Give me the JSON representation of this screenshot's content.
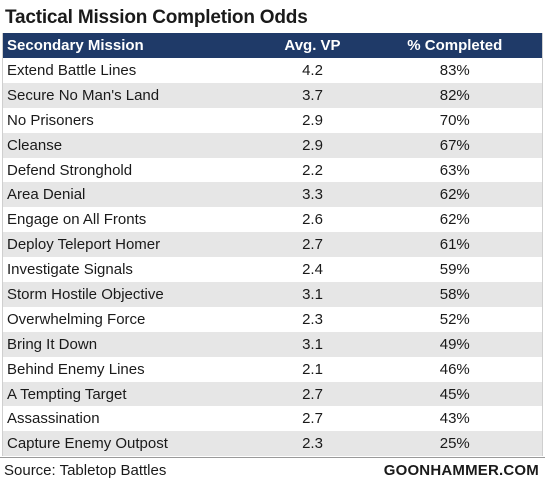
{
  "title": "Tactical Mission Completion Odds",
  "table": {
    "headers": {
      "mission": "Secondary Mission",
      "avg_vp": "Avg. VP",
      "completed": "% Completed"
    },
    "rows": [
      {
        "mission": "Extend Battle Lines",
        "avg_vp": "4.2",
        "completed": "83%"
      },
      {
        "mission": "Secure No Man's Land",
        "avg_vp": "3.7",
        "completed": "82%"
      },
      {
        "mission": "No Prisoners",
        "avg_vp": "2.9",
        "completed": "70%"
      },
      {
        "mission": "Cleanse",
        "avg_vp": "2.9",
        "completed": "67%"
      },
      {
        "mission": "Defend Stronghold",
        "avg_vp": "2.2",
        "completed": "63%"
      },
      {
        "mission": "Area Denial",
        "avg_vp": "3.3",
        "completed": "62%"
      },
      {
        "mission": "Engage on All Fronts",
        "avg_vp": "2.6",
        "completed": "62%"
      },
      {
        "mission": "Deploy Teleport Homer",
        "avg_vp": "2.7",
        "completed": "61%"
      },
      {
        "mission": "Investigate Signals",
        "avg_vp": "2.4",
        "completed": "59%"
      },
      {
        "mission": "Storm Hostile Objective",
        "avg_vp": "3.1",
        "completed": "58%"
      },
      {
        "mission": "Overwhelming Force",
        "avg_vp": "2.3",
        "completed": "52%"
      },
      {
        "mission": "Bring It Down",
        "avg_vp": "3.1",
        "completed": "49%"
      },
      {
        "mission": "Behind Enemy Lines",
        "avg_vp": "2.1",
        "completed": "46%"
      },
      {
        "mission": "A Tempting Target",
        "avg_vp": "2.7",
        "completed": "45%"
      },
      {
        "mission": "Assassination",
        "avg_vp": "2.7",
        "completed": "43%"
      },
      {
        "mission": "Capture Enemy Outpost",
        "avg_vp": "2.3",
        "completed": "25%"
      }
    ]
  },
  "footer": {
    "source": "Source: Tabletop Battles",
    "brand": "GOONHAMMER.COM"
  },
  "colors": {
    "header_bg": "#1f3a68",
    "stripe": "#e6e6e6"
  }
}
